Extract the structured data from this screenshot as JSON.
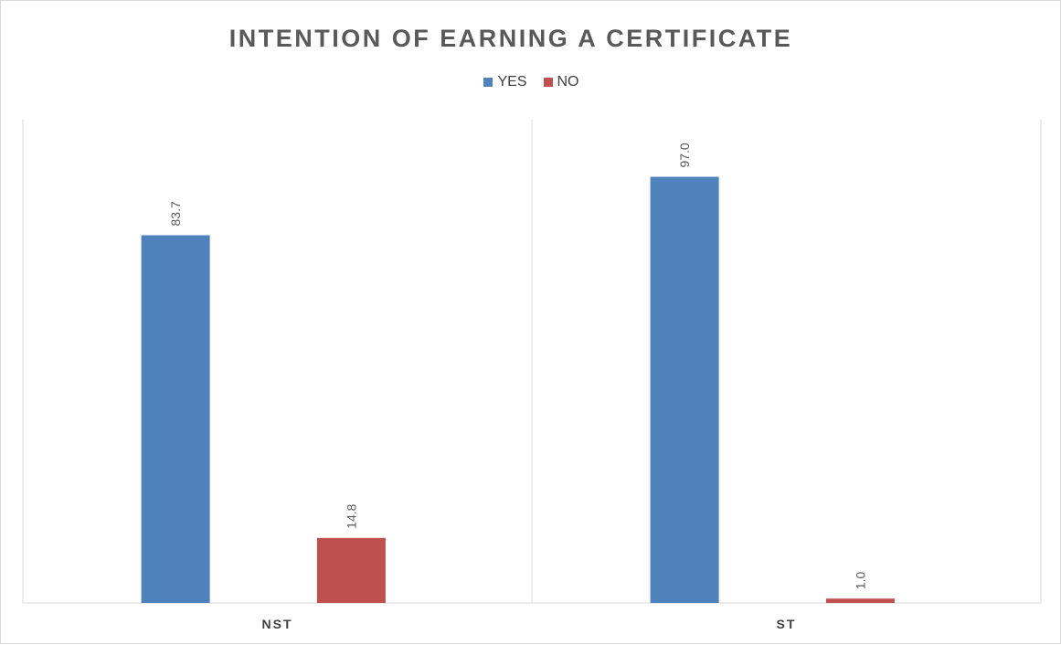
{
  "chart_data": {
    "type": "bar",
    "title": "INTENTION OF EARNING A CERTIFICATE",
    "categories": [
      "NST",
      "ST"
    ],
    "series": [
      {
        "name": "YES",
        "color": "#4f81bd",
        "values": [
          83.7,
          97.0
        ]
      },
      {
        "name": "NO",
        "color": "#c0504d",
        "values": [
          14.8,
          1.0
        ]
      }
    ],
    "ylim": [
      0,
      110
    ],
    "legend_position": "top",
    "grid": false
  }
}
